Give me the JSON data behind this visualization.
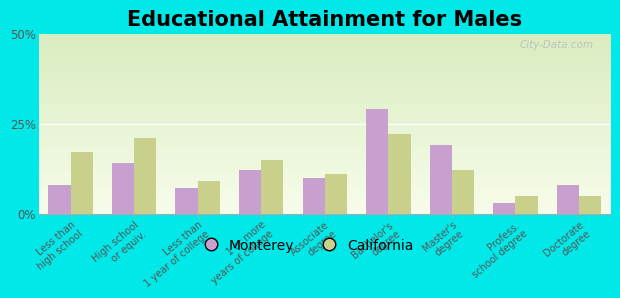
{
  "title": "Educational Attainment for Males",
  "categories": [
    "Less than\nhigh school",
    "High school\nor equiv.",
    "Less than\n1 year of college",
    "1 or more\nyears of college",
    "Associate\ndegree",
    "Bachelor's\ndegree",
    "Master's\ndegree",
    "Profess.\nschool degree",
    "Doctorate\ndegree"
  ],
  "monterey": [
    8,
    14,
    7,
    12,
    10,
    29,
    19,
    3,
    8
  ],
  "california": [
    17,
    21,
    9,
    15,
    11,
    22,
    12,
    5,
    5
  ],
  "monterey_color": "#c8a0d0",
  "california_color": "#c8d08c",
  "bg_outer": "#00e8e8",
  "ylim": [
    0,
    50
  ],
  "yticks": [
    0,
    25,
    50
  ],
  "ytick_labels": [
    "0%",
    "25%",
    "50%"
  ],
  "bar_width": 0.35,
  "title_fontsize": 15,
  "tick_fontsize": 7,
  "legend_fontsize": 10,
  "watermark": "City-Data.com"
}
